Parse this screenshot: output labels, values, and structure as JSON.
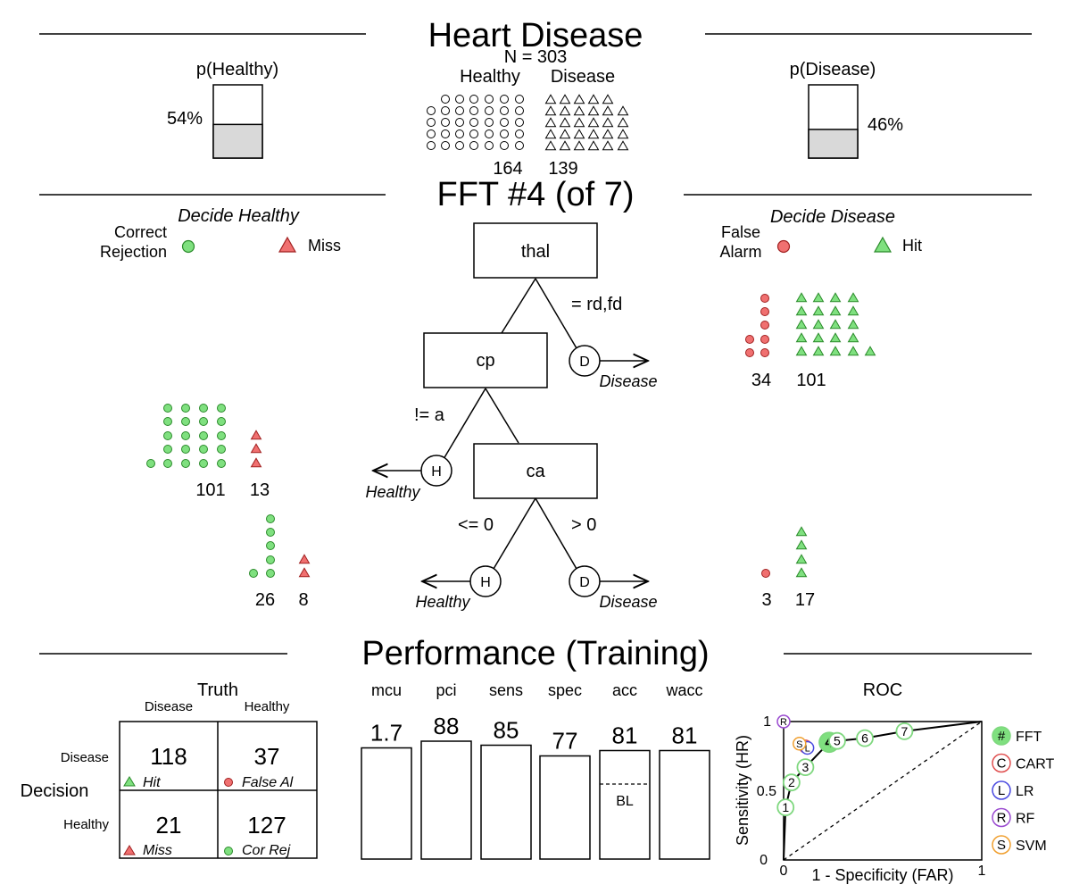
{
  "title": "Heart Disease",
  "n_label": "N = 303",
  "class_labels": {
    "healthy": "Healthy",
    "disease": "Disease"
  },
  "counts": {
    "healthy": "164",
    "disease": "139"
  },
  "p_healthy": {
    "label": "p(Healthy)",
    "text": "54%",
    "value": 0.54
  },
  "p_disease": {
    "label": "p(Disease)",
    "text": "46%",
    "value": 0.46
  },
  "fft_title": "FFT #4 (of 7)",
  "legend": {
    "decide_healthy": "Decide Healthy",
    "correct_rejection_1": "Correct",
    "correct_rejection_2": "Rejection",
    "miss": "Miss",
    "decide_disease": "Decide Disease",
    "false_alarm_1": "False",
    "false_alarm_2": "Alarm",
    "hit": "Hit"
  },
  "tree": {
    "node1": "thal",
    "node1_cond": "= rd,fd",
    "node2": "cp",
    "node2_cond": "!= a",
    "node3": "ca",
    "node3_cond_left": "<= 0",
    "node3_cond_right": "> 0",
    "exit_h": "H",
    "exit_d": "D",
    "healthy_label": "Healthy",
    "disease_label": "Disease"
  },
  "level_counts": {
    "l1_fa": "34",
    "l1_hit": "101",
    "l2_cr": "101",
    "l2_miss": "13",
    "l3_cr": "26",
    "l3_miss": "8",
    "l3_fa": "3",
    "l3_hit": "17"
  },
  "performance": {
    "title": "Performance (Training)",
    "truth_label": "Truth",
    "decision_label": "Decision",
    "col_disease": "Disease",
    "col_healthy": "Healthy",
    "row_disease": "Disease",
    "row_healthy": "Healthy",
    "hit": "118",
    "hit_label": "Hit",
    "fa": "37",
    "fa_label": "False Al",
    "miss": "21",
    "miss_label": "Miss",
    "cr": "127",
    "cr_label": "Cor Rej",
    "bl_label": "BL",
    "stats": [
      {
        "name": "mcu",
        "text": "1.7",
        "fraction": 0.83
      },
      {
        "name": "pci",
        "text": "88",
        "fraction": 0.88
      },
      {
        "name": "sens",
        "text": "85",
        "fraction": 0.85
      },
      {
        "name": "spec",
        "text": "77",
        "fraction": 0.77
      },
      {
        "name": "acc",
        "text": "81",
        "fraction": 0.81
      },
      {
        "name": "wacc",
        "text": "81",
        "fraction": 0.81
      }
    ]
  },
  "roc": {
    "title": "ROC",
    "xlabel": "1 - Specificity (FAR)",
    "ylabel": "Sensitivity (HR)",
    "tick_0": "0",
    "tick_half": "0.5",
    "tick_1": "1",
    "legend": [
      {
        "symbol": "#",
        "name": "FFT",
        "color": "#7fd87f"
      },
      {
        "symbol": "C",
        "name": "CART",
        "color": "#e05050"
      },
      {
        "symbol": "L",
        "name": "LR",
        "color": "#4a4ae0"
      },
      {
        "symbol": "R",
        "name": "RF",
        "color": "#9a4ad0"
      },
      {
        "symbol": "S",
        "name": "SVM",
        "color": "#f0a030"
      }
    ]
  },
  "chart_data": {
    "type": "scatter",
    "title": "ROC",
    "xlabel": "1 - Specificity (FAR)",
    "ylabel": "Sensitivity (HR)",
    "xlim": [
      0,
      1
    ],
    "ylim": [
      0,
      1
    ],
    "series": [
      {
        "name": "FFT",
        "points": [
          {
            "label": "1",
            "x": 0.01,
            "y": 0.38
          },
          {
            "label": "2",
            "x": 0.04,
            "y": 0.56
          },
          {
            "label": "3",
            "x": 0.11,
            "y": 0.67
          },
          {
            "label": "4",
            "x": 0.23,
            "y": 0.85
          },
          {
            "label": "5",
            "x": 0.27,
            "y": 0.86
          },
          {
            "label": "6",
            "x": 0.41,
            "y": 0.88
          },
          {
            "label": "7",
            "x": 0.61,
            "y": 0.93
          }
        ]
      },
      {
        "name": "CART",
        "points": [
          {
            "label": "C",
            "x": 0.11,
            "y": 0.82
          }
        ]
      },
      {
        "name": "LR",
        "points": [
          {
            "label": "L",
            "x": 0.12,
            "y": 0.81
          }
        ]
      },
      {
        "name": "RF",
        "points": [
          {
            "label": "R",
            "x": 0.0,
            "y": 1.0
          }
        ]
      },
      {
        "name": "SVM",
        "points": [
          {
            "label": "S",
            "x": 0.08,
            "y": 0.84
          }
        ]
      }
    ]
  },
  "colors": {
    "green": "#7fe07f",
    "green_stroke": "#2a8a2a",
    "red": "#f07070",
    "red_stroke": "#a02020",
    "fill_gray": "#d9d9d9"
  }
}
